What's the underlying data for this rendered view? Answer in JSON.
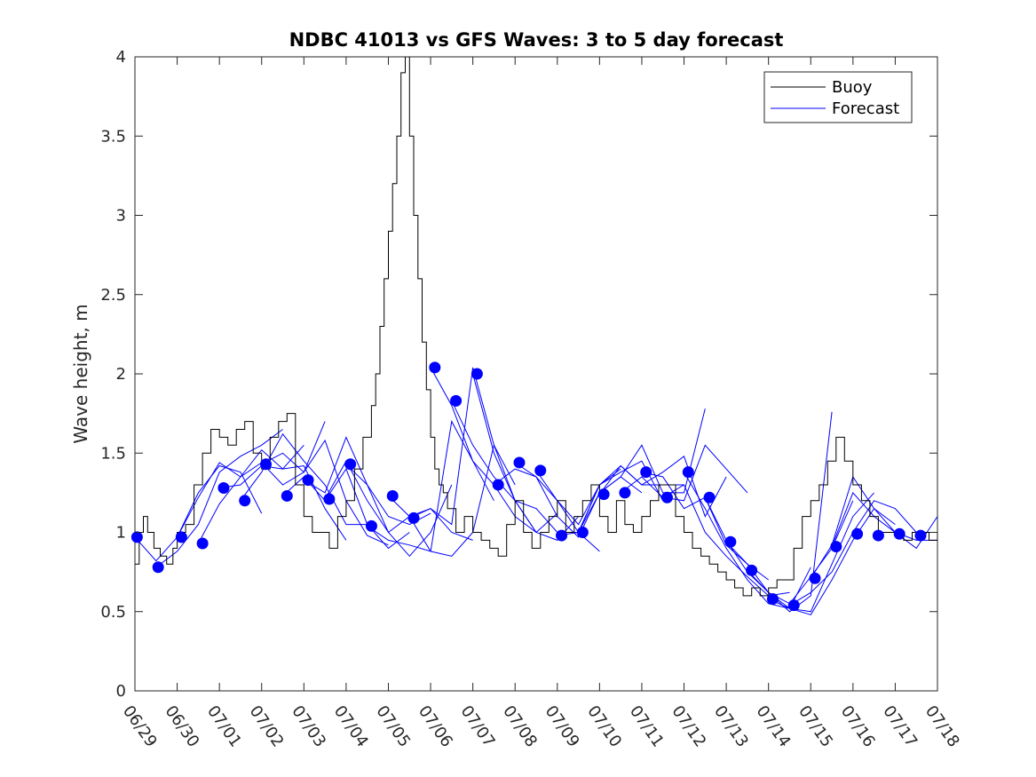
{
  "chart_data": {
    "type": "line",
    "title": "NDBC 41013 vs GFS Waves: 3 to 5 day forecast",
    "xlabel": "",
    "ylabel": "Wave height, m",
    "x_ticks": [
      "06/29",
      "06/30",
      "07/01",
      "07/02",
      "07/03",
      "07/04",
      "07/05",
      "07/06",
      "07/07",
      "07/08",
      "07/09",
      "07/10",
      "07/11",
      "07/12",
      "07/13",
      "07/14",
      "07/15",
      "07/16",
      "07/17",
      "07/18"
    ],
    "xlim": [
      0,
      19
    ],
    "ylim": [
      0,
      4
    ],
    "y_ticks": [
      0,
      0.5,
      1,
      1.5,
      2,
      2.5,
      3,
      3.5,
      4
    ],
    "y_tick_labels": [
      "0",
      "0.5",
      "1",
      "1.5",
      "2",
      "2.5",
      "3",
      "3.5",
      "4"
    ],
    "grid": false,
    "legend_position": "top-right",
    "colors": {
      "buoy": "#000000",
      "forecast": "#0000ff",
      "axis": "#262626"
    },
    "series": [
      {
        "name": "Buoy",
        "style": "line",
        "color": "#000000",
        "x": [
          0,
          0.1,
          0.2,
          0.3,
          0.45,
          0.6,
          0.75,
          0.9,
          1.0,
          1.2,
          1.4,
          1.6,
          1.8,
          2.0,
          2.2,
          2.4,
          2.6,
          2.8,
          3.0,
          3.2,
          3.4,
          3.6,
          3.8,
          4.0,
          4.2,
          4.4,
          4.6,
          4.8,
          5.0,
          5.2,
          5.4,
          5.6,
          5.7,
          5.8,
          5.9,
          6.0,
          6.1,
          6.2,
          6.3,
          6.4,
          6.5,
          6.6,
          6.7,
          6.8,
          6.9,
          7.0,
          7.1,
          7.2,
          7.3,
          7.4,
          7.6,
          7.8,
          8.0,
          8.2,
          8.4,
          8.6,
          8.8,
          9.0,
          9.2,
          9.4,
          9.6,
          9.8,
          10.0,
          10.2,
          10.4,
          10.6,
          10.8,
          11.0,
          11.2,
          11.4,
          11.6,
          11.8,
          12.0,
          12.2,
          12.4,
          12.6,
          12.8,
          13.0,
          13.2,
          13.4,
          13.6,
          13.8,
          14.0,
          14.2,
          14.4,
          14.6,
          14.8,
          15.0,
          15.2,
          15.4,
          15.6,
          15.8,
          16.0,
          16.2,
          16.4,
          16.6,
          16.8,
          17.0,
          17.2,
          17.4,
          17.6,
          17.8,
          18.0,
          18.2,
          18.4,
          18.6,
          18.8,
          19.0
        ],
        "values": [
          0.8,
          1.0,
          1.1,
          1.0,
          0.9,
          0.85,
          0.8,
          0.9,
          1.0,
          1.05,
          1.3,
          1.5,
          1.65,
          1.6,
          1.55,
          1.65,
          1.7,
          1.5,
          1.4,
          1.6,
          1.7,
          1.75,
          1.3,
          1.1,
          1.0,
          1.0,
          0.9,
          1.1,
          1.2,
          1.4,
          1.6,
          1.8,
          2.0,
          2.3,
          2.6,
          2.9,
          3.2,
          3.5,
          3.9,
          4.0,
          3.5,
          3.0,
          2.6,
          2.2,
          1.9,
          1.6,
          1.4,
          1.3,
          1.25,
          1.15,
          1.0,
          1.1,
          1.0,
          0.95,
          0.9,
          0.85,
          1.05,
          1.2,
          1.0,
          0.9,
          1.0,
          1.1,
          1.2,
          1.0,
          1.1,
          1.2,
          1.3,
          1.1,
          1.0,
          1.2,
          1.05,
          1.0,
          1.1,
          1.2,
          1.3,
          1.3,
          1.1,
          1.0,
          0.9,
          0.85,
          0.8,
          0.75,
          0.7,
          0.65,
          0.6,
          0.65,
          0.6,
          0.65,
          0.7,
          0.7,
          0.9,
          1.1,
          1.2,
          1.3,
          1.45,
          1.6,
          1.45,
          1.3,
          1.2,
          1.1,
          1.0,
          1.0,
          1.0,
          0.95,
          1.0,
          1.0,
          0.95,
          1.0
        ]
      },
      {
        "name": "Forecast",
        "style": "multi-line",
        "color": "#0000ff",
        "runs": [
          {
            "x": [
              0,
              0.5,
              1.0,
              1.5,
              2.0,
              2.5,
              3.0
            ],
            "values": [
              0.97,
              0.82,
              0.97,
              1.25,
              1.42,
              1.38,
              1.12
            ]
          },
          {
            "x": [
              0.5,
              1.0,
              1.5,
              2.0,
              2.5,
              3.0,
              3.5
            ],
            "values": [
              0.78,
              0.88,
              1.05,
              1.38,
              1.48,
              1.55,
              1.65
            ]
          },
          {
            "x": [
              1.0,
              1.5,
              2.0,
              2.5,
              3.0,
              3.5,
              4.0
            ],
            "values": [
              0.97,
              1.22,
              1.44,
              1.35,
              1.52,
              1.4,
              1.55
            ]
          },
          {
            "x": [
              1.5,
              2.0,
              2.5,
              3.0,
              3.5,
              4.0,
              4.5
            ],
            "values": [
              0.93,
              1.18,
              1.35,
              1.44,
              1.3,
              1.38,
              1.7
            ]
          },
          {
            "x": [
              2.0,
              2.5,
              3.0,
              3.5,
              4.0,
              4.5,
              5.0
            ],
            "values": [
              1.28,
              1.3,
              1.42,
              1.4,
              1.42,
              1.15,
              0.95
            ]
          },
          {
            "x": [
              2.5,
              3.0,
              3.5,
              4.0,
              4.5,
              5.0,
              5.5
            ],
            "values": [
              1.2,
              1.38,
              1.62,
              1.45,
              1.3,
              1.05,
              1.05
            ]
          },
          {
            "x": [
              3.0,
              3.5,
              4.0,
              4.5,
              5.0,
              5.5,
              6.0
            ],
            "values": [
              1.43,
              1.5,
              1.38,
              1.58,
              1.2,
              0.98,
              0.92
            ]
          },
          {
            "x": [
              3.5,
              4.0,
              4.5,
              5.0,
              5.5,
              6.0,
              6.5
            ],
            "values": [
              1.23,
              1.35,
              1.2,
              1.4,
              1.05,
              0.9,
              1.0
            ]
          },
          {
            "x": [
              4.0,
              4.5,
              5.0,
              5.5,
              6.0,
              6.5,
              7.0
            ],
            "values": [
              1.33,
              1.25,
              1.6,
              1.3,
              1.1,
              1.05,
              1.12
            ]
          },
          {
            "x": [
              4.5,
              5.0,
              5.5,
              6.0,
              6.5,
              7.0,
              7.5
            ],
            "values": [
              1.21,
              1.45,
              1.2,
              1.0,
              0.85,
              1.0,
              1.3
            ]
          },
          {
            "x": [
              5.0,
              5.5,
              6.0,
              6.5,
              7.0,
              7.5,
              8.0
            ],
            "values": [
              1.43,
              1.3,
              1.0,
              1.1,
              1.15,
              1.0,
              0.95
            ]
          },
          {
            "x": [
              5.5,
              6.0,
              6.5,
              7.0,
              7.5,
              8.0,
              8.5
            ],
            "values": [
              1.04,
              0.95,
              0.92,
              0.88,
              1.7,
              1.45,
              1.2
            ]
          },
          {
            "x": [
              6.0,
              6.5,
              7.0,
              7.5,
              8.0,
              8.5,
              9.0
            ],
            "values": [
              1.23,
              1.1,
              0.88,
              0.85,
              1.0,
              1.55,
              1.3
            ]
          },
          {
            "x": [
              6.5,
              7.0,
              7.5,
              8.0,
              8.5,
              9.0,
              9.5
            ],
            "values": [
              1.09,
              1.15,
              1.05,
              2.04,
              1.55,
              1.2,
              1.0
            ]
          },
          {
            "x": [
              7.0,
              7.5,
              8.0,
              8.5,
              9.0,
              9.5,
              10.0
            ],
            "values": [
              2.04,
              1.8,
              1.45,
              1.3,
              1.1,
              1.0,
              1.12
            ]
          },
          {
            "x": [
              7.5,
              8.0,
              8.5,
              9.0,
              9.5,
              10.0,
              10.5
            ],
            "values": [
              1.83,
              1.55,
              1.35,
              1.2,
              1.0,
              0.95,
              1.1
            ]
          },
          {
            "x": [
              8.0,
              8.5,
              9.0,
              9.5,
              10.0,
              10.5,
              11.0
            ],
            "values": [
              2.0,
              1.5,
              1.2,
              1.15,
              1.0,
              1.0,
              0.88
            ]
          },
          {
            "x": [
              8.5,
              9.0,
              9.5,
              10.0,
              10.5,
              11.0,
              11.5
            ],
            "values": [
              1.3,
              1.4,
              1.35,
              1.2,
              1.05,
              1.3,
              1.4
            ]
          },
          {
            "x": [
              9.0,
              9.5,
              10.0,
              10.5,
              11.0,
              11.5,
              12.0
            ],
            "values": [
              1.44,
              1.35,
              1.1,
              0.97,
              1.25,
              1.35,
              1.25
            ]
          },
          {
            "x": [
              9.5,
              10.0,
              10.5,
              11.0,
              11.5,
              12.0,
              12.5
            ],
            "values": [
              1.39,
              1.2,
              1.0,
              1.3,
              1.38,
              1.45,
              1.2
            ]
          },
          {
            "x": [
              10.0,
              10.5,
              11.0,
              11.5,
              12.0,
              12.5,
              13.0
            ],
            "values": [
              0.98,
              1.0,
              1.3,
              1.42,
              1.3,
              1.3,
              1.3
            ]
          },
          {
            "x": [
              10.5,
              11.0,
              11.5,
              12.0,
              12.5,
              13.0,
              13.5
            ],
            "values": [
              1.0,
              1.25,
              1.35,
              1.55,
              1.25,
              1.25,
              1.78
            ]
          },
          {
            "x": [
              11.0,
              11.5,
              12.0,
              12.5,
              13.0,
              13.5,
              14.0
            ],
            "values": [
              1.24,
              1.42,
              1.3,
              1.38,
              1.48,
              1.1,
              1.35
            ]
          },
          {
            "x": [
              11.5,
              12.0,
              12.5,
              13.0,
              13.5,
              14.0,
              14.5
            ],
            "values": [
              1.25,
              1.35,
              1.22,
              1.2,
              1.55,
              1.4,
              1.25
            ]
          },
          {
            "x": [
              12.0,
              12.5,
              13.0,
              13.5,
              14.0,
              14.5,
              15.0
            ],
            "values": [
              1.38,
              1.35,
              1.15,
              1.22,
              0.92,
              0.8,
              0.7
            ]
          },
          {
            "x": [
              12.5,
              13.0,
              13.5,
              14.0,
              14.5,
              15.0,
              15.5
            ],
            "values": [
              1.22,
              1.3,
              1.0,
              0.85,
              0.72,
              0.6,
              0.62
            ]
          },
          {
            "x": [
              13.0,
              13.5,
              14.0,
              14.5,
              15.0,
              15.5,
              16.0
            ],
            "values": [
              1.38,
              1.15,
              0.9,
              0.7,
              0.55,
              0.52,
              0.78
            ]
          },
          {
            "x": [
              13.5,
              14.0,
              14.5,
              15.0,
              15.5,
              16.0,
              16.5
            ],
            "values": [
              1.22,
              0.95,
              0.75,
              0.62,
              0.5,
              0.6,
              1.76
            ]
          },
          {
            "x": [
              14.0,
              14.5,
              15.0,
              15.5,
              16.0,
              16.5,
              17.0
            ],
            "values": [
              0.94,
              0.8,
              0.62,
              0.55,
              0.72,
              0.9,
              1.2
            ]
          },
          {
            "x": [
              14.5,
              15.0,
              15.5,
              16.0,
              16.5,
              17.0,
              17.5
            ],
            "values": [
              0.76,
              0.62,
              0.52,
              0.5,
              0.8,
              1.1,
              1.25
            ]
          },
          {
            "x": [
              15.0,
              15.5,
              16.0,
              16.5,
              17.0,
              17.5,
              18.0
            ],
            "values": [
              0.58,
              0.52,
              0.48,
              0.7,
              0.95,
              1.15,
              1.05
            ]
          },
          {
            "x": [
              15.5,
              16.0,
              16.5,
              17.0,
              17.5,
              18.0,
              18.5
            ],
            "values": [
              0.54,
              0.62,
              0.75,
              1.0,
              1.2,
              1.15,
              1.0
            ]
          },
          {
            "x": [
              16.0,
              16.5,
              17.0,
              17.5,
              18.0,
              18.5,
              19.0
            ],
            "values": [
              0.71,
              0.92,
              1.35,
              1.15,
              1.0,
              0.9,
              1.1
            ]
          },
          {
            "x": [
              16.5,
              17.0,
              17.5,
              18.0,
              18.5,
              19.0
            ],
            "values": [
              0.91,
              1.25,
              1.1,
              1.0,
              0.95,
              0.95
            ]
          }
        ],
        "dots": {
          "x": [
            0.05,
            0.55,
            1.1,
            1.6,
            2.1,
            2.6,
            3.1,
            3.6,
            4.1,
            4.6,
            5.1,
            5.6,
            6.1,
            6.6,
            7.1,
            7.6,
            8.1,
            8.6,
            9.1,
            9.6,
            10.1,
            10.6,
            11.1,
            11.6,
            12.1,
            12.6,
            13.1,
            13.6,
            14.1,
            14.6,
            15.1,
            15.6,
            16.1,
            16.6,
            17.1,
            17.6,
            18.1,
            18.6
          ],
          "values": [
            0.97,
            0.78,
            0.97,
            0.93,
            1.28,
            1.2,
            1.43,
            1.23,
            1.33,
            1.21,
            1.43,
            1.04,
            1.23,
            1.09,
            2.04,
            1.83,
            2.0,
            1.3,
            1.44,
            1.39,
            0.98,
            1.0,
            1.24,
            1.25,
            1.38,
            1.22,
            1.38,
            1.22,
            0.94,
            0.76,
            0.58,
            0.54,
            0.71,
            0.91,
            0.99,
            0.98,
            0.99,
            0.98
          ]
        }
      }
    ]
  },
  "legend": {
    "items": [
      {
        "label": "Buoy",
        "color": "#000000"
      },
      {
        "label": "Forecast",
        "color": "#0000ff"
      }
    ]
  }
}
